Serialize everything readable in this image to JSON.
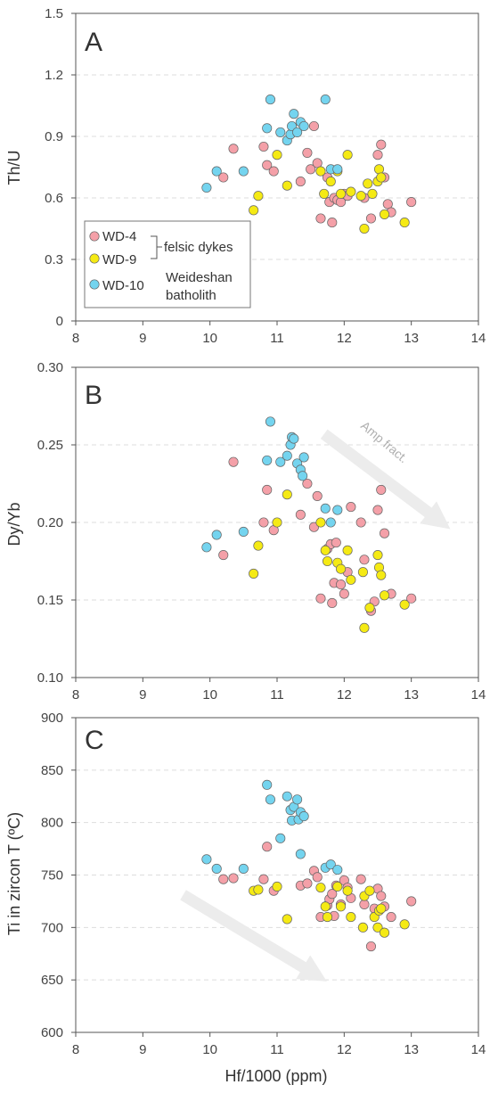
{
  "colors": {
    "wd4": "#f4a0a8",
    "wd9": "#f5ea14",
    "wd10": "#74d4ef",
    "point_stroke": "#666666",
    "frame": "#555555",
    "grid": "#dddddd",
    "arrow": "#ececec",
    "annot": "#b0b0b0"
  },
  "legend": {
    "wd4": "WD-4",
    "wd9": "WD-9",
    "wd10": "WD-10",
    "group1": "felsic dykes",
    "group2_line1": "Weideshan",
    "group2_line2": "batholith"
  },
  "chart_data": [
    {
      "type": "scatter",
      "panel": "A",
      "xlabel": "",
      "ylabel": "Th/U",
      "xlim": [
        8,
        14
      ],
      "ylim": [
        0,
        1.5
      ],
      "xticks": [
        "8",
        "9",
        "10",
        "11",
        "12",
        "13",
        "14"
      ],
      "yticks": [
        "0",
        "0.3",
        "0.6",
        "0.9",
        "1.2",
        "1.5"
      ],
      "grid": "horizontal dashed",
      "legend_position": "lower-left",
      "annotations": [],
      "series": [
        {
          "name": "WD-4",
          "color": "#f4a0a8",
          "points": [
            [
              10.2,
              0.7
            ],
            [
              10.35,
              0.84
            ],
            [
              10.8,
              0.85
            ],
            [
              10.85,
              0.76
            ],
            [
              10.95,
              0.73
            ],
            [
              11.35,
              0.68
            ],
            [
              11.45,
              0.82
            ],
            [
              11.5,
              0.74
            ],
            [
              11.55,
              0.95
            ],
            [
              11.6,
              0.77
            ],
            [
              11.65,
              0.5
            ],
            [
              11.75,
              0.7
            ],
            [
              11.78,
              0.58
            ],
            [
              11.82,
              0.48
            ],
            [
              11.85,
              0.6
            ],
            [
              11.9,
              0.59
            ],
            [
              11.95,
              0.58
            ],
            [
              12.0,
              0.62
            ],
            [
              12.05,
              0.61
            ],
            [
              12.3,
              0.6
            ],
            [
              12.4,
              0.5
            ],
            [
              12.5,
              0.81
            ],
            [
              12.55,
              0.86
            ],
            [
              12.6,
              0.7
            ],
            [
              12.65,
              0.57
            ],
            [
              12.7,
              0.53
            ],
            [
              13.0,
              0.58
            ]
          ]
        },
        {
          "name": "WD-9",
          "color": "#f5ea14",
          "points": [
            [
              10.65,
              0.54
            ],
            [
              10.72,
              0.61
            ],
            [
              11.0,
              0.81
            ],
            [
              11.15,
              0.66
            ],
            [
              11.65,
              0.73
            ],
            [
              11.7,
              0.62
            ],
            [
              11.8,
              0.68
            ],
            [
              11.95,
              0.62
            ],
            [
              12.05,
              0.81
            ],
            [
              12.1,
              0.63
            ],
            [
              12.25,
              0.61
            ],
            [
              12.3,
              0.45
            ],
            [
              12.35,
              0.67
            ],
            [
              12.42,
              0.62
            ],
            [
              12.5,
              0.68
            ],
            [
              12.52,
              0.74
            ],
            [
              12.55,
              0.7
            ],
            [
              12.6,
              0.52
            ],
            [
              12.9,
              0.48
            ],
            [
              11.9,
              0.73
            ]
          ]
        },
        {
          "name": "WD-10",
          "color": "#74d4ef",
          "points": [
            [
              9.95,
              0.65
            ],
            [
              10.1,
              0.73
            ],
            [
              10.5,
              0.73
            ],
            [
              10.85,
              0.94
            ],
            [
              10.9,
              1.08
            ],
            [
              11.05,
              0.92
            ],
            [
              11.15,
              0.88
            ],
            [
              11.2,
              0.91
            ],
            [
              11.22,
              0.95
            ],
            [
              11.25,
              1.01
            ],
            [
              11.3,
              0.92
            ],
            [
              11.35,
              0.97
            ],
            [
              11.4,
              0.95
            ],
            [
              11.72,
              1.08
            ],
            [
              11.8,
              0.74
            ],
            [
              11.9,
              0.74
            ]
          ]
        }
      ]
    },
    {
      "type": "scatter",
      "panel": "B",
      "xlabel": "",
      "ylabel": "Dy/Yb",
      "xlim": [
        8,
        14
      ],
      "ylim": [
        0.1,
        0.3
      ],
      "xticks": [
        "8",
        "9",
        "10",
        "11",
        "12",
        "13",
        "14"
      ],
      "yticks": [
        "0.10",
        "0.15",
        "0.20",
        "0.25",
        "0.30"
      ],
      "grid": "horizontal dashed",
      "legend_position": "none",
      "annotations": [
        {
          "text": "Amp fract.",
          "arrow": "downward-right, from (11.7, 0.257) to (13.45, 0.200)"
        }
      ],
      "series": [
        {
          "name": "WD-4",
          "color": "#f4a0a8",
          "points": [
            [
              10.2,
              0.179
            ],
            [
              10.35,
              0.239
            ],
            [
              10.8,
              0.2
            ],
            [
              10.85,
              0.221
            ],
            [
              10.95,
              0.195
            ],
            [
              11.35,
              0.205
            ],
            [
              11.45,
              0.225
            ],
            [
              11.55,
              0.197
            ],
            [
              11.6,
              0.217
            ],
            [
              11.65,
              0.151
            ],
            [
              11.75,
              0.183
            ],
            [
              11.8,
              0.186
            ],
            [
              11.82,
              0.148
            ],
            [
              11.85,
              0.161
            ],
            [
              11.88,
              0.187
            ],
            [
              11.95,
              0.16
            ],
            [
              12.0,
              0.154
            ],
            [
              12.05,
              0.168
            ],
            [
              12.1,
              0.21
            ],
            [
              12.25,
              0.2
            ],
            [
              12.3,
              0.176
            ],
            [
              12.4,
              0.143
            ],
            [
              12.45,
              0.149
            ],
            [
              12.5,
              0.208
            ],
            [
              12.55,
              0.221
            ],
            [
              12.6,
              0.193
            ],
            [
              12.7,
              0.154
            ],
            [
              13.0,
              0.151
            ]
          ]
        },
        {
          "name": "WD-9",
          "color": "#f5ea14",
          "points": [
            [
              10.65,
              0.167
            ],
            [
              10.72,
              0.185
            ],
            [
              11.0,
              0.2
            ],
            [
              11.15,
              0.218
            ],
            [
              11.65,
              0.2
            ],
            [
              11.72,
              0.182
            ],
            [
              11.75,
              0.175
            ],
            [
              11.9,
              0.174
            ],
            [
              11.95,
              0.17
            ],
            [
              12.05,
              0.182
            ],
            [
              12.1,
              0.163
            ],
            [
              12.28,
              0.168
            ],
            [
              12.3,
              0.132
            ],
            [
              12.38,
              0.145
            ],
            [
              12.5,
              0.179
            ],
            [
              12.52,
              0.171
            ],
            [
              12.55,
              0.166
            ],
            [
              12.6,
              0.153
            ],
            [
              12.9,
              0.147
            ]
          ]
        },
        {
          "name": "WD-10",
          "color": "#74d4ef",
          "points": [
            [
              9.95,
              0.184
            ],
            [
              10.1,
              0.192
            ],
            [
              10.5,
              0.194
            ],
            [
              10.85,
              0.24
            ],
            [
              10.9,
              0.265
            ],
            [
              11.05,
              0.239
            ],
            [
              11.15,
              0.243
            ],
            [
              11.2,
              0.25
            ],
            [
              11.22,
              0.255
            ],
            [
              11.25,
              0.254
            ],
            [
              11.3,
              0.238
            ],
            [
              11.35,
              0.234
            ],
            [
              11.38,
              0.23
            ],
            [
              11.4,
              0.242
            ],
            [
              11.72,
              0.209
            ],
            [
              11.8,
              0.2
            ],
            [
              11.9,
              0.208
            ]
          ]
        }
      ]
    },
    {
      "type": "scatter",
      "panel": "C",
      "xlabel": "Hf/1000 (ppm)",
      "ylabel": "Ti in zircon T (ºC)",
      "xlim": [
        8,
        14
      ],
      "ylim": [
        600,
        900
      ],
      "xticks": [
        "8",
        "9",
        "10",
        "11",
        "12",
        "13",
        "14"
      ],
      "yticks": [
        "600",
        "650",
        "700",
        "750",
        "800",
        "850",
        "900"
      ],
      "grid": "horizontal dashed",
      "legend_position": "none",
      "annotations": [
        {
          "text": "",
          "arrow": "downward-right, from (9.6, 731) to (11.6, 654)"
        }
      ],
      "series": [
        {
          "name": "WD-4",
          "color": "#f4a0a8",
          "points": [
            [
              10.2,
              746
            ],
            [
              10.35,
              747
            ],
            [
              10.8,
              746
            ],
            [
              10.85,
              777
            ],
            [
              10.95,
              735
            ],
            [
              11.35,
              740
            ],
            [
              11.45,
              742
            ],
            [
              11.55,
              754
            ],
            [
              11.6,
              748
            ],
            [
              11.65,
              710
            ],
            [
              11.75,
              721
            ],
            [
              11.78,
              727
            ],
            [
              11.82,
              732
            ],
            [
              11.85,
              711
            ],
            [
              11.88,
              740
            ],
            [
              11.95,
              722
            ],
            [
              12.0,
              745
            ],
            [
              12.05,
              738
            ],
            [
              12.1,
              728
            ],
            [
              12.25,
              746
            ],
            [
              12.3,
              722
            ],
            [
              12.4,
              682
            ],
            [
              12.45,
              718
            ],
            [
              12.5,
              737
            ],
            [
              12.55,
              730
            ],
            [
              12.6,
              720
            ],
            [
              12.7,
              710
            ],
            [
              13.0,
              725
            ]
          ]
        },
        {
          "name": "WD-9",
          "color": "#f5ea14",
          "points": [
            [
              10.65,
              735
            ],
            [
              10.72,
              736
            ],
            [
              11.0,
              739
            ],
            [
              11.15,
              708
            ],
            [
              11.65,
              738
            ],
            [
              11.72,
              720
            ],
            [
              11.75,
              710
            ],
            [
              11.9,
              739
            ],
            [
              11.95,
              720
            ],
            [
              12.05,
              735
            ],
            [
              12.1,
              710
            ],
            [
              12.28,
              700
            ],
            [
              12.3,
              730
            ],
            [
              12.38,
              735
            ],
            [
              12.45,
              710
            ],
            [
              12.5,
              700
            ],
            [
              12.52,
              716
            ],
            [
              12.55,
              718
            ],
            [
              12.6,
              695
            ],
            [
              12.9,
              703
            ]
          ]
        },
        {
          "name": "WD-10",
          "color": "#74d4ef",
          "points": [
            [
              9.95,
              765
            ],
            [
              10.1,
              756
            ],
            [
              10.5,
              756
            ],
            [
              10.85,
              836
            ],
            [
              10.9,
              822
            ],
            [
              11.05,
              785
            ],
            [
              11.15,
              825
            ],
            [
              11.2,
              812
            ],
            [
              11.22,
              802
            ],
            [
              11.25,
              815
            ],
            [
              11.3,
              822
            ],
            [
              11.32,
              803
            ],
            [
              11.35,
              810
            ],
            [
              11.4,
              806
            ],
            [
              11.35,
              770
            ],
            [
              11.72,
              757
            ],
            [
              11.8,
              760
            ],
            [
              11.9,
              755
            ]
          ]
        }
      ]
    }
  ]
}
